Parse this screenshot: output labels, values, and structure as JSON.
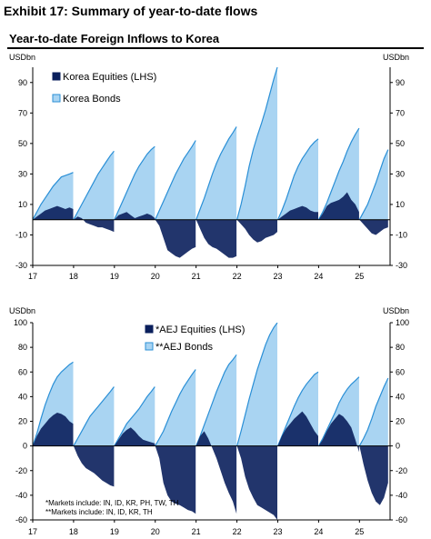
{
  "exhibit": {
    "title": "Exhibit 17: Summary of year-to-date flows"
  },
  "colors": {
    "equities": "#0a1f5c",
    "bonds": "#a9d4f2",
    "bonds_edge": "#2a8fd6",
    "equities_overlap": "#4a76ae",
    "axis": "#000000"
  },
  "chart_data": [
    {
      "type": "area",
      "title": "Year-to-date Foreign Inflows to Korea",
      "unit_left": "USDbn",
      "unit_right": "USDbn",
      "ylim": [
        -30,
        100
      ],
      "left_ticks": [
        "90",
        "70",
        "50",
        "30",
        "10",
        "-10",
        "-30"
      ],
      "left_tick_values": [
        90,
        70,
        50,
        30,
        10,
        -10,
        -30
      ],
      "right_ticks": [
        "90",
        "70",
        "50",
        "30",
        "10",
        "-10",
        "-30"
      ],
      "right_tick_values": [
        90,
        70,
        50,
        30,
        10,
        -10,
        -30
      ],
      "x_ticks": [
        "17",
        "18",
        "19",
        "20",
        "21",
        "22",
        "23",
        "24",
        "25"
      ],
      "x_tick_values": [
        2017,
        2018,
        2019,
        2020,
        2021,
        2022,
        2023,
        2024,
        2025
      ],
      "xlim": [
        2017,
        2025.75
      ],
      "legend": [
        "Korea Equities (LHS)",
        "Korea Bonds"
      ],
      "series": [
        {
          "name": "Korea Equities (LHS)",
          "key": "equities",
          "x": [
            2017,
            2017.1,
            2017.2,
            2017.3,
            2017.4,
            2017.5,
            2017.6,
            2017.7,
            2017.8,
            2017.9,
            2017.99,
            2018,
            2018.1,
            2018.2,
            2018.3,
            2018.4,
            2018.5,
            2018.6,
            2018.7,
            2018.8,
            2018.9,
            2018.99,
            2019,
            2019.1,
            2019.2,
            2019.3,
            2019.4,
            2019.5,
            2019.6,
            2019.7,
            2019.8,
            2019.9,
            2019.99,
            2020,
            2020.1,
            2020.2,
            2020.3,
            2020.4,
            2020.5,
            2020.6,
            2020.7,
            2020.8,
            2020.9,
            2020.99,
            2021,
            2021.1,
            2021.2,
            2021.3,
            2021.4,
            2021.5,
            2021.6,
            2021.7,
            2021.8,
            2021.9,
            2021.99,
            2022,
            2022.1,
            2022.2,
            2022.3,
            2022.4,
            2022.5,
            2022.6,
            2022.7,
            2022.8,
            2022.9,
            2022.99,
            2023,
            2023.1,
            2023.2,
            2023.3,
            2023.4,
            2023.5,
            2023.6,
            2023.7,
            2023.8,
            2023.9,
            2023.99,
            2024,
            2024.1,
            2024.2,
            2024.3,
            2024.4,
            2024.5,
            2024.6,
            2024.7,
            2024.8,
            2024.9,
            2024.99,
            2025,
            2025.1,
            2025.2,
            2025.3,
            2025.4,
            2025.5,
            2025.6,
            2025.7
          ],
          "values": [
            0,
            2,
            4,
            6,
            7,
            8,
            9,
            8,
            7,
            8,
            7,
            0,
            2,
            1,
            -2,
            -3,
            -4,
            -5,
            -5,
            -6,
            -7,
            -8,
            0,
            3,
            4,
            5,
            3,
            1,
            2,
            3,
            4,
            3,
            1,
            0,
            -4,
            -12,
            -20,
            -22,
            -24,
            -25,
            -23,
            -21,
            -19,
            -18,
            0,
            -6,
            -12,
            -16,
            -18,
            -19,
            -21,
            -23,
            -25,
            -25,
            -24,
            0,
            -3,
            -6,
            -10,
            -13,
            -15,
            -14,
            -12,
            -11,
            -10,
            -8,
            0,
            2,
            4,
            6,
            7,
            8,
            9,
            8,
            6,
            5,
            5,
            0,
            4,
            9,
            11,
            12,
            13,
            15,
            18,
            13,
            10,
            5,
            0,
            -3,
            -6,
            -9,
            -10,
            -8,
            -6,
            -5
          ]
        },
        {
          "name": "Korea Bonds",
          "key": "bonds",
          "x": [
            2017,
            2017.1,
            2017.2,
            2017.3,
            2017.4,
            2017.5,
            2017.6,
            2017.7,
            2017.8,
            2017.9,
            2017.99,
            2018,
            2018.1,
            2018.2,
            2018.3,
            2018.4,
            2018.5,
            2018.6,
            2018.7,
            2018.8,
            2018.9,
            2018.99,
            2019,
            2019.1,
            2019.2,
            2019.3,
            2019.4,
            2019.5,
            2019.6,
            2019.7,
            2019.8,
            2019.9,
            2019.99,
            2020,
            2020.1,
            2020.2,
            2020.3,
            2020.4,
            2020.5,
            2020.6,
            2020.7,
            2020.8,
            2020.9,
            2020.99,
            2021,
            2021.1,
            2021.2,
            2021.3,
            2021.4,
            2021.5,
            2021.6,
            2021.7,
            2021.8,
            2021.9,
            2021.99,
            2022,
            2022.1,
            2022.2,
            2022.3,
            2022.4,
            2022.5,
            2022.6,
            2022.7,
            2022.8,
            2022.9,
            2022.99,
            2023,
            2023.1,
            2023.2,
            2023.3,
            2023.4,
            2023.5,
            2023.6,
            2023.7,
            2023.8,
            2023.9,
            2023.99,
            2024,
            2024.1,
            2024.2,
            2024.3,
            2024.4,
            2024.5,
            2024.6,
            2024.7,
            2024.8,
            2024.9,
            2024.99,
            2025,
            2025.1,
            2025.2,
            2025.3,
            2025.4,
            2025.5,
            2025.6,
            2025.7
          ],
          "values": [
            0,
            5,
            10,
            14,
            18,
            22,
            25,
            28,
            29,
            30,
            31,
            0,
            5,
            10,
            15,
            20,
            25,
            30,
            34,
            38,
            42,
            45,
            0,
            6,
            12,
            18,
            24,
            30,
            35,
            39,
            43,
            46,
            48,
            0,
            6,
            12,
            18,
            24,
            30,
            35,
            40,
            44,
            48,
            52,
            0,
            7,
            14,
            22,
            30,
            37,
            43,
            48,
            53,
            57,
            61,
            0,
            10,
            22,
            35,
            46,
            55,
            63,
            72,
            82,
            92,
            100,
            0,
            6,
            13,
            21,
            29,
            35,
            40,
            44,
            48,
            51,
            53,
            0,
            5,
            11,
            18,
            25,
            32,
            38,
            45,
            51,
            56,
            60,
            0,
            5,
            10,
            17,
            24,
            32,
            40,
            46
          ]
        }
      ]
    },
    {
      "type": "area",
      "title": "",
      "unit_left": "USDbn",
      "unit_right": "USDbn",
      "ylim": [
        -60,
        100
      ],
      "left_ticks": [
        "100",
        "80",
        "60",
        "40",
        "20",
        "0",
        "-20",
        "-40",
        "-60"
      ],
      "left_tick_values": [
        100,
        80,
        60,
        40,
        20,
        0,
        -20,
        -40,
        -60
      ],
      "right_ticks": [
        "100",
        "80",
        "60",
        "40",
        "20",
        "0",
        "-20",
        "-40",
        "-60"
      ],
      "right_tick_values": [
        100,
        80,
        60,
        40,
        20,
        0,
        -20,
        -40,
        -60
      ],
      "x_ticks": [
        "17",
        "18",
        "19",
        "20",
        "21",
        "22",
        "23",
        "24",
        "25"
      ],
      "x_tick_values": [
        2017,
        2018,
        2019,
        2020,
        2021,
        2022,
        2023,
        2024,
        2025
      ],
      "xlim": [
        2017,
        2025.75
      ],
      "legend": [
        "*AEJ Equities (LHS)",
        "**AEJ Bonds"
      ],
      "notes": [
        "*Markets include: IN, ID, KR, PH, TW, TH",
        "**Markets include: IN, ID, KR, TH"
      ],
      "series": [
        {
          "name": "*AEJ Equities (LHS)",
          "key": "equities",
          "x": [
            2017,
            2017.1,
            2017.2,
            2017.3,
            2017.4,
            2017.5,
            2017.6,
            2017.7,
            2017.8,
            2017.9,
            2017.99,
            2018,
            2018.1,
            2018.2,
            2018.3,
            2018.4,
            2018.5,
            2018.6,
            2018.7,
            2018.8,
            2018.9,
            2018.99,
            2019,
            2019.1,
            2019.2,
            2019.3,
            2019.4,
            2019.5,
            2019.6,
            2019.7,
            2019.8,
            2019.9,
            2019.99,
            2020,
            2020.1,
            2020.2,
            2020.3,
            2020.4,
            2020.5,
            2020.6,
            2020.7,
            2020.8,
            2020.9,
            2020.99,
            2021,
            2021.1,
            2021.2,
            2021.3,
            2021.4,
            2021.5,
            2021.6,
            2021.7,
            2021.8,
            2021.9,
            2021.99,
            2022,
            2022.1,
            2022.2,
            2022.3,
            2022.4,
            2022.5,
            2022.6,
            2022.7,
            2022.8,
            2022.9,
            2022.99,
            2023,
            2023.1,
            2023.2,
            2023.3,
            2023.4,
            2023.5,
            2023.6,
            2023.7,
            2023.8,
            2023.9,
            2023.99,
            2024,
            2024.1,
            2024.2,
            2024.3,
            2024.4,
            2024.5,
            2024.6,
            2024.7,
            2024.8,
            2024.9,
            2024.99,
            2025,
            2025.1,
            2025.2,
            2025.3,
            2025.4,
            2025.5,
            2025.6,
            2025.7
          ],
          "values": [
            0,
            8,
            14,
            18,
            22,
            25,
            27,
            26,
            24,
            20,
            18,
            0,
            -8,
            -14,
            -18,
            -20,
            -22,
            -25,
            -28,
            -30,
            -32,
            -33,
            0,
            5,
            10,
            13,
            15,
            12,
            8,
            5,
            4,
            3,
            2,
            0,
            -10,
            -30,
            -40,
            -45,
            -47,
            -48,
            -50,
            -52,
            -53,
            -55,
            0,
            8,
            12,
            6,
            -2,
            -10,
            -20,
            -30,
            -38,
            -45,
            -55,
            0,
            -10,
            -25,
            -35,
            -42,
            -48,
            -50,
            -52,
            -54,
            -56,
            -60,
            0,
            8,
            14,
            18,
            22,
            25,
            28,
            24,
            18,
            12,
            8,
            0,
            5,
            12,
            18,
            22,
            26,
            24,
            20,
            15,
            5,
            -5,
            0,
            -15,
            -28,
            -38,
            -45,
            -48,
            -42,
            -30
          ]
        },
        {
          "name": "**AEJ Bonds",
          "key": "bonds",
          "x": [
            2017,
            2017.1,
            2017.2,
            2017.3,
            2017.4,
            2017.5,
            2017.6,
            2017.7,
            2017.8,
            2017.9,
            2017.99,
            2018,
            2018.1,
            2018.2,
            2018.3,
            2018.4,
            2018.5,
            2018.6,
            2018.7,
            2018.8,
            2018.9,
            2018.99,
            2019,
            2019.1,
            2019.2,
            2019.3,
            2019.4,
            2019.5,
            2019.6,
            2019.7,
            2019.8,
            2019.9,
            2019.99,
            2020,
            2020.1,
            2020.2,
            2020.3,
            2020.4,
            2020.5,
            2020.6,
            2020.7,
            2020.8,
            2020.9,
            2020.99,
            2021,
            2021.1,
            2021.2,
            2021.3,
            2021.4,
            2021.5,
            2021.6,
            2021.7,
            2021.8,
            2021.9,
            2021.99,
            2022,
            2022.1,
            2022.2,
            2022.3,
            2022.4,
            2022.5,
            2022.6,
            2022.7,
            2022.8,
            2022.9,
            2022.99,
            2023,
            2023.1,
            2023.2,
            2023.3,
            2023.4,
            2023.5,
            2023.6,
            2023.7,
            2023.8,
            2023.9,
            2023.99,
            2024,
            2024.1,
            2024.2,
            2024.3,
            2024.4,
            2024.5,
            2024.6,
            2024.7,
            2024.8,
            2024.9,
            2024.99,
            2025,
            2025.1,
            2025.2,
            2025.3,
            2025.4,
            2025.5,
            2025.6,
            2025.7
          ],
          "values": [
            0,
            10,
            22,
            33,
            42,
            50,
            56,
            60,
            63,
            66,
            68,
            0,
            6,
            12,
            18,
            24,
            28,
            32,
            36,
            40,
            44,
            48,
            0,
            6,
            12,
            18,
            22,
            26,
            30,
            35,
            40,
            44,
            48,
            0,
            6,
            12,
            20,
            28,
            35,
            42,
            48,
            53,
            58,
            62,
            0,
            8,
            17,
            26,
            35,
            44,
            52,
            60,
            66,
            70,
            74,
            0,
            12,
            25,
            38,
            50,
            62,
            72,
            82,
            90,
            96,
            100,
            0,
            8,
            16,
            24,
            32,
            39,
            45,
            50,
            54,
            58,
            60,
            0,
            6,
            13,
            20,
            27,
            35,
            41,
            46,
            50,
            53,
            56,
            0,
            6,
            13,
            22,
            32,
            40,
            48,
            55
          ]
        }
      ]
    }
  ]
}
